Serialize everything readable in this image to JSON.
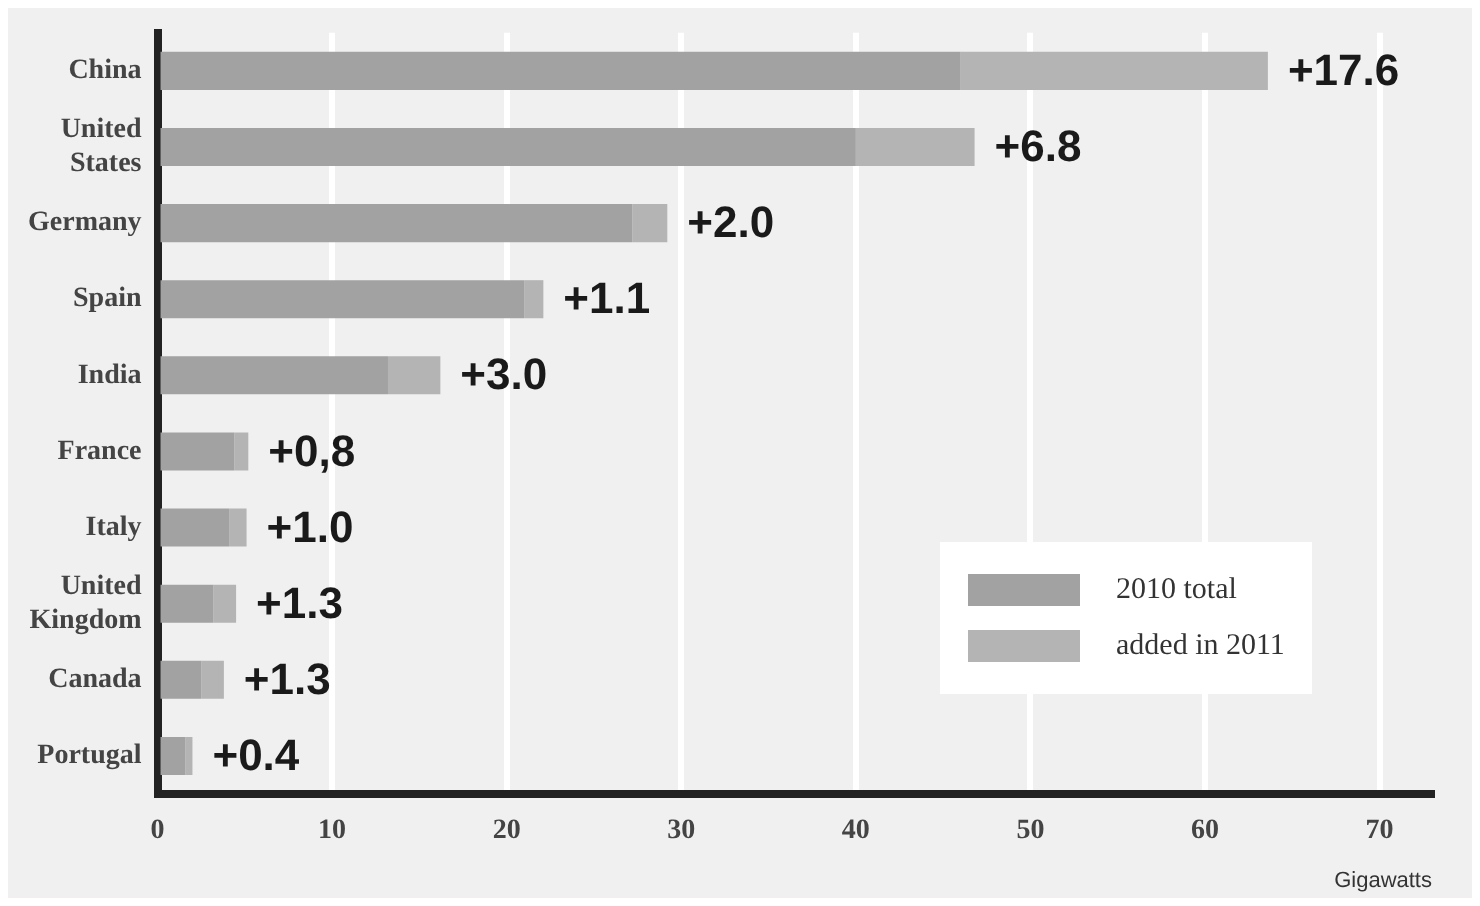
{
  "chart_data": {
    "type": "bar",
    "orientation": "horizontal",
    "stacked": true,
    "xlabel": "Gigawatts",
    "categories": [
      "China",
      "United States",
      "Germany",
      "Spain",
      "India",
      "France",
      "Italy",
      "United Kingdom",
      "Canada",
      "Portugal"
    ],
    "series": [
      {
        "name": "2010 total",
        "color": "#a2a2a2",
        "values": [
          46,
          40,
          27.2,
          21,
          13.2,
          4.4,
          4.1,
          3.2,
          2.5,
          1.6
        ]
      },
      {
        "name": "added in 2011",
        "color": "#b4b4b4",
        "values": [
          17.6,
          6.8,
          2.0,
          1.1,
          3.0,
          0.8,
          1.0,
          1.3,
          1.3,
          0.4
        ],
        "value_labels": [
          "+17.6",
          "+6.8",
          "+2.0",
          "+1.1",
          "+3.0",
          "+0,8",
          "+1.0",
          "+1.3",
          "+1.3",
          "+0.4"
        ]
      }
    ],
    "xlim": [
      0,
      73
    ],
    "xticks": [
      0,
      10,
      20,
      30,
      40,
      50,
      60,
      70
    ],
    "grid": "x",
    "legend": "bottom right"
  }
}
